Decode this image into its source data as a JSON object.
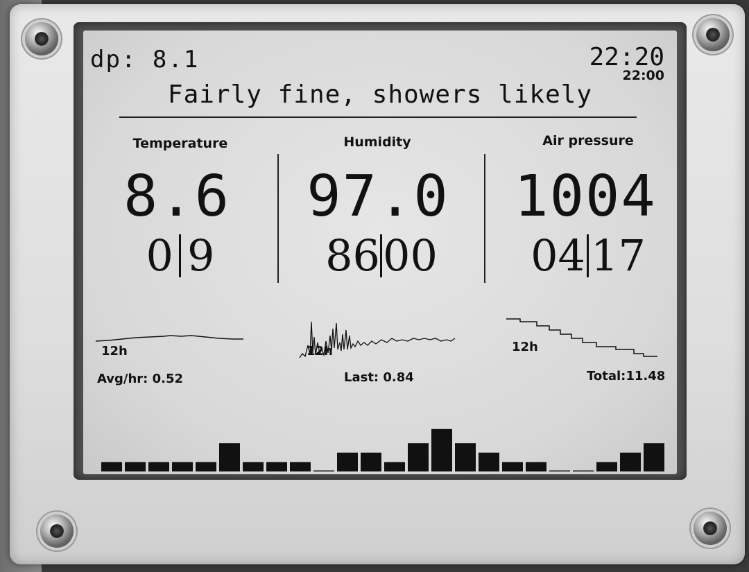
{
  "header": {
    "dew_point": "dp: 8.1",
    "time": "22:20",
    "last_update": "22:00",
    "forecast": "Fairly fine, showers likely"
  },
  "temperature": {
    "label": "Temperature",
    "value": "8.6",
    "min": "0",
    "max": "9"
  },
  "humidity": {
    "label": "Humidity",
    "value": "97.0",
    "min": "86",
    "max": "00"
  },
  "pressure": {
    "label": "Air pressure",
    "value": "1004",
    "min": "04",
    "max": "17"
  },
  "trend_labels": {
    "temperature": "12h",
    "humidity": "12h",
    "pressure": "12h"
  },
  "rain": {
    "avg_hr": "Avg/hr: 0.52",
    "last": "Last: 0.84",
    "total": "Total:11.48"
  },
  "chart_data": {
    "type": "bar",
    "title": "",
    "xlabel": "",
    "ylabel": "",
    "values": [
      1,
      1,
      1,
      1,
      1,
      3,
      1,
      1,
      1,
      0,
      2,
      2,
      1,
      3,
      4.5,
      3,
      2,
      1,
      1,
      0,
      0,
      1,
      2,
      3
    ],
    "ylim": [
      0,
      5
    ]
  },
  "colors": {
    "ink": "#111111",
    "screen": "#dcdcdc",
    "frame": "#e4e4e4"
  }
}
